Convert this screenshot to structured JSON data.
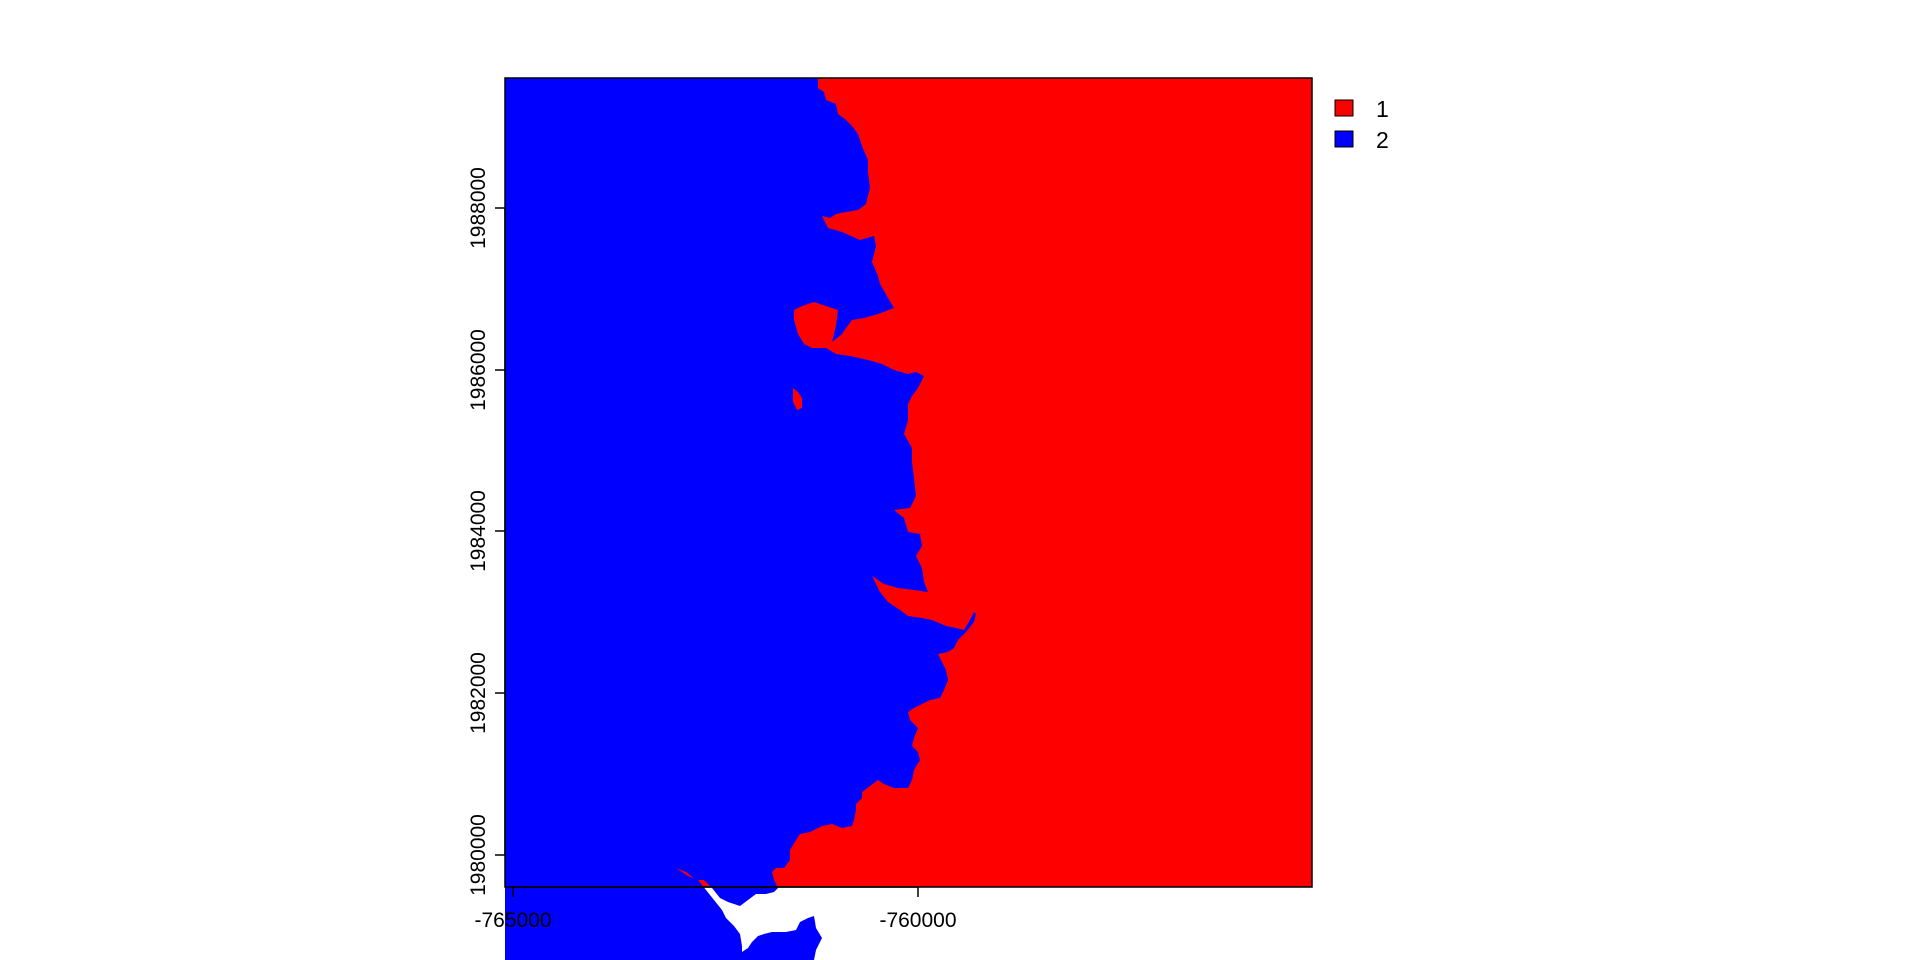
{
  "colors": {
    "class_1": "#FF0000",
    "class_2": "#0000FF",
    "frame": "#000000",
    "background": "#FFFFFF"
  },
  "legend": {
    "items": [
      {
        "label": "1",
        "color": "#FF0000"
      },
      {
        "label": "2",
        "color": "#0000FF"
      }
    ]
  },
  "axes": {
    "x_ticks": [
      "-765000",
      "-760000"
    ],
    "y_ticks": [
      "1980000",
      "1982000",
      "1984000",
      "1986000",
      "1988000"
    ]
  }
}
